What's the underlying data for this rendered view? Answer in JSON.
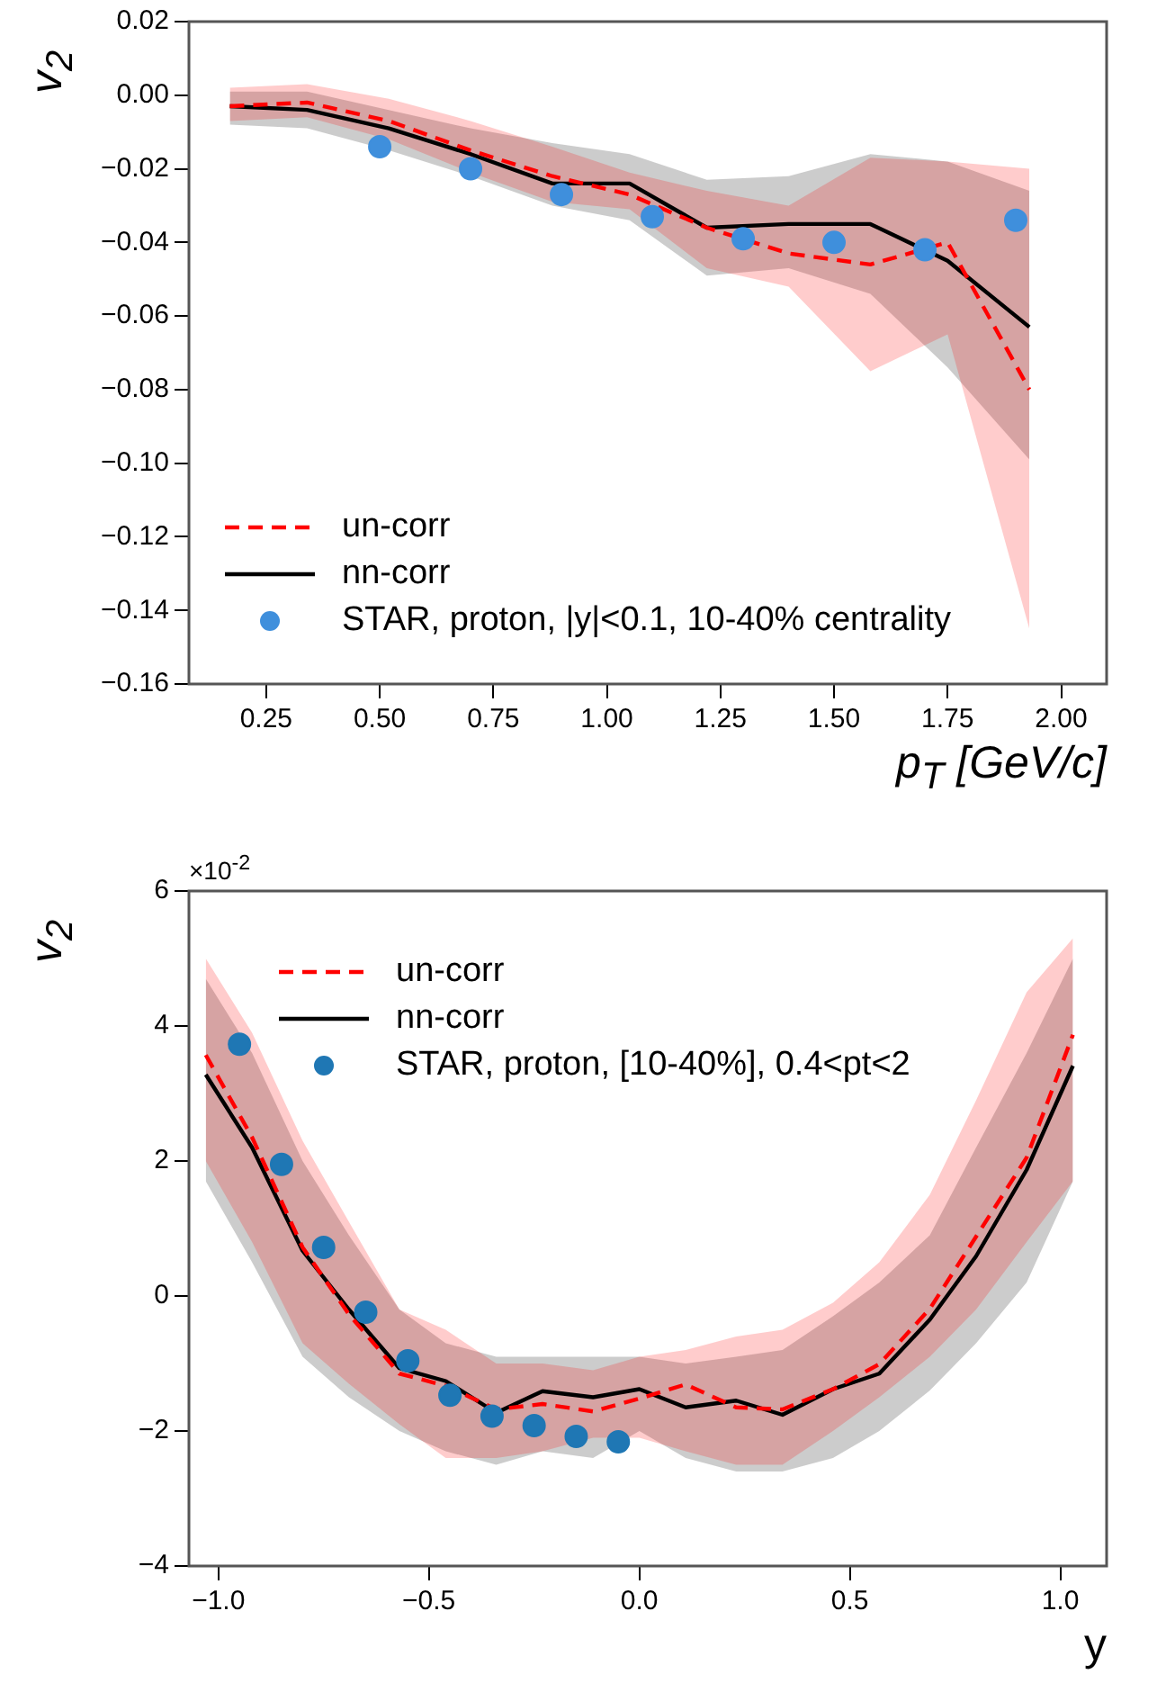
{
  "chart_data": [
    {
      "type": "line",
      "xlabel": "p$_{T}$ [GeV/c]",
      "ylabel": "v$_{2}$",
      "xlim": [
        0.08,
        2.1
      ],
      "ylim": [
        -0.16,
        0.02
      ],
      "xticks": [
        {
          "value": 0.25,
          "label": "0.25"
        },
        {
          "value": 0.5,
          "label": "0.50"
        },
        {
          "value": 0.75,
          "label": "0.75"
        },
        {
          "value": 1.0,
          "label": "1.00"
        },
        {
          "value": 1.25,
          "label": "1.25"
        },
        {
          "value": 1.5,
          "label": "1.50"
        },
        {
          "value": 1.75,
          "label": "1.75"
        },
        {
          "value": 2.0,
          "label": "2.00"
        }
      ],
      "yticks": [
        {
          "value": 0.02,
          "label": "0.02"
        },
        {
          "value": 0.0,
          "label": "0.00"
        },
        {
          "value": -0.02,
          "label": "−0.02"
        },
        {
          "value": -0.04,
          "label": "−0.04"
        },
        {
          "value": -0.06,
          "label": "−0.06"
        },
        {
          "value": -0.08,
          "label": "−0.08"
        },
        {
          "value": -0.1,
          "label": "−0.10"
        },
        {
          "value": -0.12,
          "label": "−0.12"
        },
        {
          "value": -0.14,
          "label": "−0.14"
        },
        {
          "value": -0.16,
          "label": "−0.16"
        }
      ],
      "legend": "bottom left",
      "grid": false,
      "series": [
        {
          "name": "un-corr",
          "type": "line",
          "color": "#ff0000",
          "line_style": "dashed",
          "marker": "none",
          "x": [
            0.17,
            0.34,
            0.52,
            0.7,
            0.88,
            1.05,
            1.22,
            1.4,
            1.58,
            1.75,
            1.93
          ],
          "values": [
            -0.003,
            -0.002,
            -0.007,
            -0.015,
            -0.022,
            -0.027,
            -0.036,
            -0.043,
            -0.046,
            -0.04,
            -0.08
          ],
          "lower": [
            -0.007,
            -0.006,
            -0.012,
            -0.021,
            -0.029,
            -0.031,
            -0.047,
            -0.052,
            -0.075,
            -0.065,
            -0.145
          ],
          "upper": [
            0.002,
            0.003,
            -0.001,
            -0.007,
            -0.014,
            -0.021,
            -0.026,
            -0.03,
            -0.017,
            -0.018,
            -0.02
          ]
        },
        {
          "name": "nn-corr",
          "type": "line",
          "color": "#000000",
          "line_style": "solid",
          "marker": "none",
          "x": [
            0.17,
            0.34,
            0.52,
            0.7,
            0.88,
            1.05,
            1.22,
            1.4,
            1.58,
            1.75,
            1.93
          ],
          "values": [
            -0.003,
            -0.004,
            -0.009,
            -0.016,
            -0.024,
            -0.024,
            -0.036,
            -0.035,
            -0.035,
            -0.045,
            -0.063
          ],
          "lower": [
            -0.008,
            -0.009,
            -0.015,
            -0.022,
            -0.03,
            -0.034,
            -0.049,
            -0.047,
            -0.054,
            -0.074,
            -0.099
          ],
          "upper": [
            0.001,
            0.001,
            -0.004,
            -0.009,
            -0.013,
            -0.016,
            -0.023,
            -0.022,
            -0.016,
            -0.018,
            -0.026
          ]
        },
        {
          "name": "STAR, proton, |y|<0.1, 10-40% centrality",
          "type": "scatter",
          "color": "#3f8fdc",
          "marker": "circle",
          "x": [
            0.5,
            0.7,
            0.9,
            1.1,
            1.3,
            1.5,
            1.7,
            1.9
          ],
          "values": [
            -0.014,
            -0.02,
            -0.027,
            -0.033,
            -0.039,
            -0.04,
            -0.042,
            -0.034
          ],
          "errors": [
            null,
            null,
            null,
            null,
            null,
            null,
            null,
            0.003
          ]
        }
      ]
    },
    {
      "type": "line",
      "xlabel": "y",
      "ylabel": "v$_{2}$",
      "annotations": [
        "×10$^{-2}$"
      ],
      "xlim": [
        -1.07,
        1.11
      ],
      "ylim": [
        -4,
        6
      ],
      "xticks": [
        {
          "value": -1.0,
          "label": "−1.0"
        },
        {
          "value": -0.5,
          "label": "−0.5"
        },
        {
          "value": 0.0,
          "label": "0.0"
        },
        {
          "value": 0.5,
          "label": "0.5"
        },
        {
          "value": 1.0,
          "label": "1.0"
        }
      ],
      "yticks": [
        {
          "value": -4,
          "label": "−4"
        },
        {
          "value": -2,
          "label": "−2"
        },
        {
          "value": 0,
          "label": "0"
        },
        {
          "value": 2,
          "label": "2"
        },
        {
          "value": 4,
          "label": "4"
        },
        {
          "value": 6,
          "label": "6"
        }
      ],
      "legend": "top left",
      "grid": false,
      "series": [
        {
          "name": "un-corr",
          "type": "line",
          "color": "#ff0000",
          "line_style": "dashed",
          "marker": "none",
          "x": [
            -1.03,
            -0.92,
            -0.8,
            -0.69,
            -0.57,
            -0.46,
            -0.34,
            -0.23,
            -0.11,
            0,
            0.11,
            0.23,
            0.34,
            0.46,
            0.57,
            0.69,
            0.8,
            0.92,
            1.03
          ],
          "values": [
            3.57,
            2.35,
            0.72,
            -0.27,
            -1.15,
            -1.33,
            -1.68,
            -1.6,
            -1.71,
            -1.52,
            -1.31,
            -1.65,
            -1.68,
            -1.38,
            -1.01,
            -0.19,
            0.88,
            2.05,
            3.87
          ],
          "lower": [
            2.0,
            0.8,
            -0.7,
            -1.3,
            -1.9,
            -2.4,
            -2.4,
            -2.3,
            -2.1,
            -2.1,
            -2.3,
            -2.5,
            -2.5,
            -2.0,
            -1.5,
            -0.9,
            -0.2,
            0.8,
            1.7
          ],
          "upper": [
            5.0,
            3.9,
            2.3,
            1.1,
            -0.2,
            -0.5,
            -1.0,
            -1.0,
            -1.1,
            -0.9,
            -0.8,
            -0.6,
            -0.5,
            -0.1,
            0.5,
            1.5,
            2.9,
            4.5,
            5.3
          ]
        },
        {
          "name": "nn-corr",
          "type": "line",
          "color": "#000000",
          "line_style": "solid",
          "marker": "none",
          "x": [
            -1.03,
            -0.92,
            -0.8,
            -0.69,
            -0.57,
            -0.46,
            -0.34,
            -0.23,
            -0.11,
            0,
            0.11,
            0.23,
            0.34,
            0.46,
            0.57,
            0.69,
            0.8,
            0.92,
            1.03
          ],
          "values": [
            3.28,
            2.2,
            0.67,
            -0.2,
            -1.07,
            -1.26,
            -1.73,
            -1.41,
            -1.5,
            -1.38,
            -1.65,
            -1.55,
            -1.76,
            -1.38,
            -1.15,
            -0.35,
            0.59,
            1.87,
            3.41
          ],
          "lower": [
            1.7,
            0.5,
            -0.9,
            -1.5,
            -2.0,
            -2.3,
            -2.5,
            -2.3,
            -2.4,
            -2.0,
            -2.4,
            -2.6,
            -2.6,
            -2.4,
            -2.0,
            -1.4,
            -0.7,
            0.2,
            1.7
          ],
          "upper": [
            4.7,
            3.6,
            2.0,
            0.9,
            -0.2,
            -0.7,
            -0.9,
            -0.9,
            -0.9,
            -0.9,
            -1.0,
            -0.9,
            -0.8,
            -0.3,
            0.2,
            0.9,
            2.2,
            3.6,
            5.0
          ]
        },
        {
          "name": "STAR, proton, [10-40%], 0.4<pt<2",
          "type": "scatter",
          "color": "#1f77b4",
          "marker": "circle",
          "x": [
            -0.95,
            -0.85,
            -0.75,
            -0.65,
            -0.55,
            -0.45,
            -0.35,
            -0.25,
            -0.15,
            -0.05
          ],
          "values": [
            3.73,
            1.95,
            0.72,
            -0.24,
            -0.96,
            -1.47,
            -1.78,
            -1.92,
            -2.08,
            -2.16
          ]
        }
      ]
    }
  ]
}
